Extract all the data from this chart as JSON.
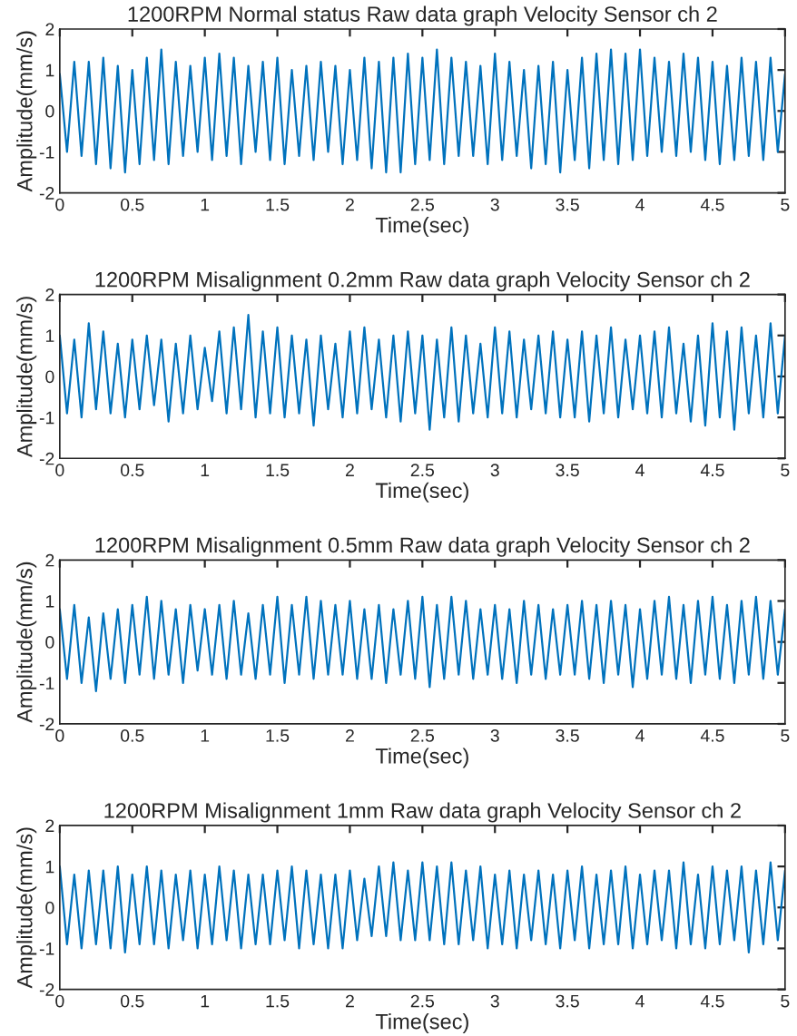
{
  "chart_data": [
    {
      "type": "line",
      "title": "1200RPM Normal status Raw data graph Velocity Sensor ch 2",
      "xlabel": "Time(sec)",
      "ylabel": "Amplitude(mm/s)",
      "xlim": [
        0,
        5
      ],
      "ylim": [
        -2,
        2
      ],
      "xticks": [
        0,
        0.5,
        1,
        1.5,
        2,
        2.5,
        3,
        3.5,
        4,
        4.5,
        5
      ],
      "yticks": [
        -2,
        -1,
        0,
        1,
        2
      ],
      "x": [
        0,
        0.05,
        0.1,
        0.15,
        0.2,
        0.25,
        0.3,
        0.35,
        0.4,
        0.45,
        0.5,
        0.55,
        0.6,
        0.65,
        0.7,
        0.75,
        0.8,
        0.85,
        0.9,
        0.95,
        1,
        1.05,
        1.1,
        1.15,
        1.2,
        1.25,
        1.3,
        1.35,
        1.4,
        1.45,
        1.5,
        1.55,
        1.6,
        1.65,
        1.7,
        1.75,
        1.8,
        1.85,
        1.9,
        1.95,
        2,
        2.05,
        2.1,
        2.15,
        2.2,
        2.25,
        2.3,
        2.35,
        2.4,
        2.45,
        2.5,
        2.55,
        2.6,
        2.65,
        2.7,
        2.75,
        2.8,
        2.85,
        2.9,
        2.95,
        3,
        3.05,
        3.1,
        3.15,
        3.2,
        3.25,
        3.3,
        3.35,
        3.4,
        3.45,
        3.5,
        3.55,
        3.6,
        3.65,
        3.7,
        3.75,
        3.8,
        3.85,
        3.9,
        3.95,
        4,
        4.05,
        4.1,
        4.15,
        4.2,
        4.25,
        4.3,
        4.35,
        4.4,
        4.45,
        4.5,
        4.55,
        4.6,
        4.65,
        4.7,
        4.75,
        4.8,
        4.85,
        4.9,
        4.95,
        5
      ],
      "series": [
        {
          "color": "#0072bd",
          "values": [
            0.9,
            -1.0,
            1.2,
            -1.1,
            1.2,
            -1.3,
            1.3,
            -1.4,
            1.1,
            -1.5,
            1.0,
            -1.3,
            1.3,
            -1.2,
            1.5,
            -1.3,
            1.2,
            -1.1,
            1.1,
            -1.0,
            1.3,
            -1.2,
            1.4,
            -1.1,
            1.3,
            -1.3,
            1.1,
            -1.0,
            1.2,
            -1.2,
            1.3,
            -1.3,
            1.0,
            -1.1,
            1.1,
            -1.2,
            1.2,
            -1.0,
            1.1,
            -1.3,
            1.0,
            -1.2,
            1.3,
            -1.4,
            1.2,
            -1.5,
            1.3,
            -1.5,
            1.4,
            -1.3,
            1.3,
            -1.2,
            1.5,
            -1.3,
            1.3,
            -1.1,
            1.2,
            -1.1,
            1.1,
            -1.3,
            1.4,
            -1.2,
            1.2,
            -1.1,
            1.0,
            -1.4,
            1.1,
            -1.3,
            1.2,
            -1.5,
            1.0,
            -1.2,
            1.3,
            -1.4,
            1.4,
            -1.2,
            1.5,
            -1.3,
            1.4,
            -1.2,
            1.5,
            -1.1,
            1.3,
            -1.0,
            1.2,
            -1.1,
            1.4,
            -1.0,
            1.3,
            -1.2,
            1.2,
            -1.3,
            1.1,
            -1.2,
            1.3,
            -1.1,
            1.2,
            -1.2,
            1.3,
            -1.0,
            0.9
          ]
        }
      ]
    },
    {
      "type": "line",
      "title": "1200RPM Misalignment 0.2mm Raw data graph Velocity Sensor ch 2",
      "xlabel": "Time(sec)",
      "ylabel": "Amplitude(mm/s)",
      "xlim": [
        0,
        5
      ],
      "ylim": [
        -2,
        2
      ],
      "xticks": [
        0,
        0.5,
        1,
        1.5,
        2,
        2.5,
        3,
        3.5,
        4,
        4.5,
        5
      ],
      "yticks": [
        -2,
        -1,
        0,
        1,
        2
      ],
      "x": [
        0,
        0.05,
        0.1,
        0.15,
        0.2,
        0.25,
        0.3,
        0.35,
        0.4,
        0.45,
        0.5,
        0.55,
        0.6,
        0.65,
        0.7,
        0.75,
        0.8,
        0.85,
        0.9,
        0.95,
        1,
        1.05,
        1.1,
        1.15,
        1.2,
        1.25,
        1.3,
        1.35,
        1.4,
        1.45,
        1.5,
        1.55,
        1.6,
        1.65,
        1.7,
        1.75,
        1.8,
        1.85,
        1.9,
        1.95,
        2,
        2.05,
        2.1,
        2.15,
        2.2,
        2.25,
        2.3,
        2.35,
        2.4,
        2.45,
        2.5,
        2.55,
        2.6,
        2.65,
        2.7,
        2.75,
        2.8,
        2.85,
        2.9,
        2.95,
        3,
        3.05,
        3.1,
        3.15,
        3.2,
        3.25,
        3.3,
        3.35,
        3.4,
        3.45,
        3.5,
        3.55,
        3.6,
        3.65,
        3.7,
        3.75,
        3.8,
        3.85,
        3.9,
        3.95,
        4,
        4.05,
        4.1,
        4.15,
        4.2,
        4.25,
        4.3,
        4.35,
        4.4,
        4.45,
        4.5,
        4.55,
        4.6,
        4.65,
        4.7,
        4.75,
        4.8,
        4.85,
        4.9,
        4.95,
        5
      ],
      "series": [
        {
          "color": "#0072bd",
          "values": [
            1.0,
            -0.9,
            0.9,
            -1.0,
            1.3,
            -0.8,
            1.1,
            -0.9,
            0.8,
            -1.0,
            0.9,
            -0.8,
            1.0,
            -0.7,
            0.9,
            -1.1,
            0.8,
            -0.9,
            1.0,
            -0.8,
            0.7,
            -0.6,
            1.1,
            -0.9,
            1.2,
            -0.8,
            1.5,
            -1.0,
            1.1,
            -0.9,
            1.2,
            -1.0,
            1.0,
            -0.9,
            0.9,
            -1.2,
            1.0,
            -0.8,
            0.8,
            -1.0,
            1.1,
            -0.9,
            1.2,
            -0.8,
            0.9,
            -1.0,
            1.0,
            -1.1,
            1.1,
            -0.9,
            1.0,
            -1.3,
            0.9,
            -1.0,
            1.2,
            -1.1,
            1.0,
            -0.9,
            0.8,
            -1.0,
            1.2,
            -0.9,
            1.1,
            -1.0,
            0.9,
            -0.8,
            1.0,
            -0.9,
            1.1,
            -1.0,
            0.9,
            -1.0,
            1.1,
            -1.1,
            1.0,
            -0.9,
            1.2,
            -1.0,
            0.9,
            -0.8,
            1.0,
            -0.9,
            1.1,
            -1.0,
            1.2,
            -0.9,
            0.8,
            -1.1,
            1.0,
            -1.2,
            1.3,
            -1.0,
            1.1,
            -1.3,
            1.2,
            -0.9,
            1.0,
            -1.0,
            1.3,
            -0.9,
            1.0
          ]
        }
      ]
    },
    {
      "type": "line",
      "title": "1200RPM Misalignment 0.5mm Raw data graph Velocity Sensor ch 2",
      "xlabel": "Time(sec)",
      "ylabel": "Amplitude(mm/s)",
      "xlim": [
        0,
        5
      ],
      "ylim": [
        -2,
        2
      ],
      "xticks": [
        0,
        0.5,
        1,
        1.5,
        2,
        2.5,
        3,
        3.5,
        4,
        4.5,
        5
      ],
      "yticks": [
        -2,
        -1,
        0,
        1,
        2
      ],
      "x": [
        0,
        0.05,
        0.1,
        0.15,
        0.2,
        0.25,
        0.3,
        0.35,
        0.4,
        0.45,
        0.5,
        0.55,
        0.6,
        0.65,
        0.7,
        0.75,
        0.8,
        0.85,
        0.9,
        0.95,
        1,
        1.05,
        1.1,
        1.15,
        1.2,
        1.25,
        1.3,
        1.35,
        1.4,
        1.45,
        1.5,
        1.55,
        1.6,
        1.65,
        1.7,
        1.75,
        1.8,
        1.85,
        1.9,
        1.95,
        2,
        2.05,
        2.1,
        2.15,
        2.2,
        2.25,
        2.3,
        2.35,
        2.4,
        2.45,
        2.5,
        2.55,
        2.6,
        2.65,
        2.7,
        2.75,
        2.8,
        2.85,
        2.9,
        2.95,
        3,
        3.05,
        3.1,
        3.15,
        3.2,
        3.25,
        3.3,
        3.35,
        3.4,
        3.45,
        3.5,
        3.55,
        3.6,
        3.65,
        3.7,
        3.75,
        3.8,
        3.85,
        3.9,
        3.95,
        4,
        4.05,
        4.1,
        4.15,
        4.2,
        4.25,
        4.3,
        4.35,
        4.4,
        4.45,
        4.5,
        4.55,
        4.6,
        4.65,
        4.7,
        4.75,
        4.8,
        4.85,
        4.9,
        4.95,
        5
      ],
      "series": [
        {
          "color": "#0072bd",
          "values": [
            0.8,
            -0.9,
            0.9,
            -1.0,
            0.6,
            -1.2,
            0.7,
            -0.9,
            0.8,
            -1.0,
            0.9,
            -0.8,
            1.1,
            -0.9,
            1.0,
            -0.8,
            0.8,
            -1.0,
            0.9,
            -0.7,
            0.8,
            -0.8,
            0.9,
            -0.9,
            1.0,
            -0.8,
            0.7,
            -0.9,
            0.9,
            -0.8,
            1.1,
            -1.0,
            0.9,
            -0.8,
            1.1,
            -0.9,
            1.0,
            -0.8,
            0.9,
            -0.8,
            1.0,
            -0.9,
            0.8,
            -0.9,
            0.9,
            -1.0,
            0.8,
            -0.8,
            1.0,
            -0.9,
            1.1,
            -1.1,
            0.9,
            -0.9,
            1.1,
            -0.8,
            1.0,
            -0.9,
            0.8,
            -0.8,
            0.9,
            -0.9,
            0.8,
            -1.0,
            1.0,
            -0.8,
            0.9,
            -0.9,
            0.8,
            -0.8,
            0.9,
            -0.8,
            1.0,
            -0.9,
            0.9,
            -1.0,
            1.0,
            -0.8,
            0.9,
            -1.1,
            0.8,
            -0.9,
            1.0,
            -0.8,
            1.1,
            -0.9,
            0.9,
            -1.0,
            1.0,
            -0.8,
            1.1,
            -0.9,
            0.9,
            -1.0,
            1.0,
            -0.8,
            1.1,
            -0.9,
            1.0,
            -0.8,
            0.8
          ]
        }
      ]
    },
    {
      "type": "line",
      "title": "1200RPM Misalignment 1mm Raw data graph Velocity Sensor ch 2",
      "xlabel": "Time(sec)",
      "ylabel": "Amplitude(mm/s)",
      "xlim": [
        0,
        5
      ],
      "ylim": [
        -2,
        2
      ],
      "xticks": [
        0,
        0.5,
        1,
        1.5,
        2,
        2.5,
        3,
        3.5,
        4,
        4.5,
        5
      ],
      "yticks": [
        -2,
        -1,
        0,
        1,
        2
      ],
      "x": [
        0,
        0.05,
        0.1,
        0.15,
        0.2,
        0.25,
        0.3,
        0.35,
        0.4,
        0.45,
        0.5,
        0.55,
        0.6,
        0.65,
        0.7,
        0.75,
        0.8,
        0.85,
        0.9,
        0.95,
        1,
        1.05,
        1.1,
        1.15,
        1.2,
        1.25,
        1.3,
        1.35,
        1.4,
        1.45,
        1.5,
        1.55,
        1.6,
        1.65,
        1.7,
        1.75,
        1.8,
        1.85,
        1.9,
        1.95,
        2,
        2.05,
        2.1,
        2.15,
        2.2,
        2.25,
        2.3,
        2.35,
        2.4,
        2.45,
        2.5,
        2.55,
        2.6,
        2.65,
        2.7,
        2.75,
        2.8,
        2.85,
        2.9,
        2.95,
        3,
        3.05,
        3.1,
        3.15,
        3.2,
        3.25,
        3.3,
        3.35,
        3.4,
        3.45,
        3.5,
        3.55,
        3.6,
        3.65,
        3.7,
        3.75,
        3.8,
        3.85,
        3.9,
        3.95,
        4,
        4.05,
        4.1,
        4.15,
        4.2,
        4.25,
        4.3,
        4.35,
        4.4,
        4.45,
        4.5,
        4.55,
        4.6,
        4.65,
        4.7,
        4.75,
        4.8,
        4.85,
        4.9,
        4.95,
        5
      ],
      "series": [
        {
          "color": "#0072bd",
          "values": [
            1.0,
            -0.9,
            0.8,
            -1.0,
            0.9,
            -0.9,
            0.9,
            -1.0,
            1.0,
            -1.1,
            0.8,
            -0.9,
            1.0,
            -0.9,
            0.9,
            -1.0,
            0.8,
            -0.8,
            0.9,
            -1.0,
            0.8,
            -0.9,
            1.0,
            -0.8,
            0.9,
            -1.0,
            0.8,
            -0.9,
            0.8,
            -0.9,
            0.9,
            -0.8,
            1.0,
            -1.0,
            0.9,
            -0.9,
            0.8,
            -1.0,
            0.8,
            -1.0,
            0.9,
            -0.8,
            0.7,
            -0.7,
            1.0,
            -0.7,
            1.1,
            -0.8,
            0.9,
            -0.8,
            1.1,
            -0.8,
            1.0,
            -0.9,
            1.1,
            -0.9,
            0.9,
            -0.8,
            1.0,
            -1.0,
            0.8,
            -0.9,
            0.9,
            -1.0,
            0.8,
            -0.8,
            0.9,
            -0.9,
            0.8,
            -1.0,
            0.9,
            -0.8,
            1.0,
            -1.0,
            0.8,
            -0.9,
            0.9,
            -0.9,
            1.0,
            -1.0,
            0.8,
            -0.9,
            0.9,
            -0.8,
            0.9,
            -1.0,
            1.1,
            -0.9,
            0.8,
            -1.0,
            1.0,
            -0.9,
            0.9,
            -0.8,
            1.0,
            -1.1,
            0.9,
            -0.9,
            1.1,
            -0.8,
            0.9
          ]
        }
      ]
    }
  ]
}
